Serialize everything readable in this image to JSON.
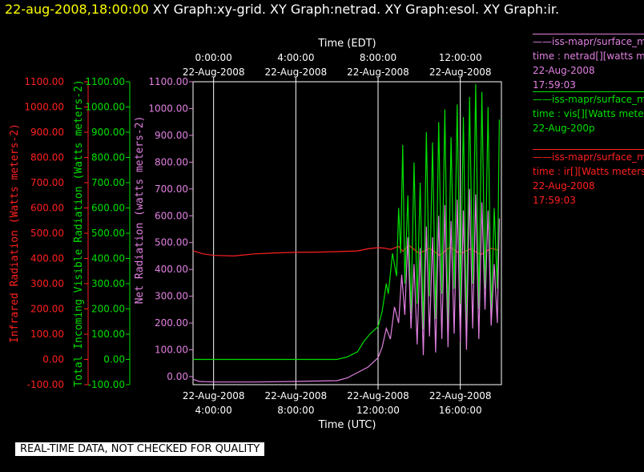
{
  "header": {
    "timestamp": "22-aug-2008,18:00:00",
    "titles": "XY Graph:xy-grid.  XY Graph:netrad.  XY Graph:esol.  XY Graph:ir."
  },
  "legend": [
    {
      "line1": "iss-mapr/surface_m",
      "line2": "time : netrad[][watts m",
      "line3": "22-Aug-2008",
      "line4": "17:59:03",
      "color": "#e080e0"
    },
    {
      "line1": "iss-mapr/surface_m",
      "line2": "time : vis[][Watts mete",
      "line3": "22-Aug-200p",
      "line4": "",
      "color": "#00e000"
    },
    {
      "line1": "iss-mapr/surface_m",
      "line2": "time : ir[][Watts meters",
      "line3": "22-Aug-2008",
      "line4": "17:59:03",
      "color": "#ff2020"
    }
  ],
  "footer": "REAL-TIME DATA, NOT CHECKED FOR QUALITY",
  "colors": {
    "ir": "#ff2020",
    "vis": "#00e000",
    "net": "#e080e0",
    "grid": "#ffffff"
  },
  "chart_data": {
    "type": "line",
    "xlabel_top": "Time (EDT)",
    "xlabel_bottom": "Time (UTC)",
    "x_ticks_top": [
      {
        "time": "0:00:00",
        "date": "22-Aug-2008",
        "utc_hour": 4
      },
      {
        "time": "4:00:00",
        "date": "22-Aug-2008",
        "utc_hour": 8
      },
      {
        "time": "8:00:00",
        "date": "22-Aug-2008",
        "utc_hour": 12
      },
      {
        "time": "12:00:00",
        "date": "22-Aug-2008",
        "utc_hour": 16
      }
    ],
    "x_ticks_bottom": [
      {
        "date": "22-Aug-2008",
        "time": "4:00:00",
        "utc_hour": 4
      },
      {
        "date": "22-Aug-2008",
        "time": "8:00:00",
        "utc_hour": 8
      },
      {
        "date": "22-Aug-2008",
        "time": "12:00:00",
        "utc_hour": 12
      },
      {
        "date": "22-Aug-2008",
        "time": "16:00:00",
        "utc_hour": 16
      }
    ],
    "xlim_utc_hours": [
      3.0,
      18.0
    ],
    "y_ticks": [
      "-100.00",
      "0.00",
      "100.00",
      "200.00",
      "300.00",
      "400.00",
      "500.00",
      "600.00",
      "700.00",
      "800.00",
      "900.00",
      "1000.00",
      "1100.00"
    ],
    "y_ticks_net": [
      "0.00",
      "100.00",
      "200.00",
      "300.00",
      "400.00",
      "500.00",
      "600.00",
      "700.00",
      "800.00",
      "900.00",
      "1000.00",
      "1100.00"
    ],
    "ylim": [
      -100,
      1100
    ],
    "ylim_net": [
      -30,
      1100
    ],
    "grid": true,
    "series": [
      {
        "name": "Infrared Radiation (Watts meters-2)",
        "key": "ir",
        "axis": "left",
        "x": [
          3.0,
          3.5,
          4.0,
          5.0,
          6.0,
          7.0,
          8.0,
          9.0,
          10.0,
          11.0,
          11.5,
          12.0,
          12.3,
          12.6,
          13.0,
          13.2,
          13.5,
          14.0,
          14.5,
          15.0,
          15.5,
          16.0,
          16.5,
          17.0,
          17.5,
          17.9
        ],
        "y": [
          430,
          418,
          412,
          410,
          418,
          422,
          424,
          425,
          427,
          430,
          438,
          443,
          441,
          436,
          448,
          428,
          452,
          420,
          440,
          412,
          445,
          418,
          438,
          415,
          440,
          432
        ]
      },
      {
        "name": "Total Incoming Visible Radiation (Watts meters-2)",
        "key": "vis",
        "axis": "left",
        "x": [
          3.0,
          4.0,
          6.0,
          8.0,
          10.0,
          10.5,
          11.0,
          11.3,
          11.6,
          12.0,
          12.2,
          12.4,
          12.5,
          12.7,
          12.9,
          13.0,
          13.1,
          13.2,
          13.3,
          13.45,
          13.6,
          13.75,
          13.9,
          14.05,
          14.2,
          14.35,
          14.5,
          14.65,
          14.8,
          14.95,
          15.1,
          15.25,
          15.4,
          15.55,
          15.7,
          15.85,
          16.0,
          16.15,
          16.3,
          16.45,
          16.6,
          16.75,
          16.9,
          17.05,
          17.2,
          17.35,
          17.5,
          17.65,
          17.8,
          17.9
        ],
        "y": [
          0,
          0,
          0,
          0,
          0,
          10,
          30,
          70,
          100,
          130,
          190,
          300,
          260,
          420,
          330,
          600,
          420,
          850,
          300,
          650,
          180,
          780,
          220,
          700,
          120,
          900,
          250,
          860,
          160,
          940,
          260,
          990,
          140,
          880,
          280,
          1010,
          220,
          960,
          130,
          1040,
          300,
          1090,
          200,
          1060,
          280,
          1000,
          170,
          600,
          280,
          950
        ]
      },
      {
        "name": "Net Radiation (watts meters-2)",
        "key": "net",
        "axis": "net",
        "x": [
          3.0,
          3.3,
          4.0,
          6.0,
          8.0,
          10.0,
          10.5,
          11.0,
          11.5,
          12.0,
          12.2,
          12.4,
          12.6,
          12.8,
          13.0,
          13.15,
          13.3,
          13.45,
          13.6,
          13.75,
          13.9,
          14.05,
          14.2,
          14.35,
          14.5,
          14.65,
          14.8,
          14.95,
          15.1,
          15.25,
          15.4,
          15.55,
          15.7,
          15.85,
          16.0,
          16.15,
          16.3,
          16.45,
          16.6,
          16.75,
          16.9,
          17.05,
          17.2,
          17.35,
          17.5,
          17.65,
          17.8,
          17.9
        ],
        "y": [
          -10,
          -18,
          -20,
          -20,
          -18,
          -15,
          -5,
          15,
          35,
          70,
          110,
          180,
          140,
          260,
          200,
          380,
          230,
          520,
          180,
          420,
          120,
          480,
          80,
          560,
          150,
          520,
          90,
          600,
          140,
          640,
          110,
          580,
          160,
          660,
          130,
          620,
          100,
          700,
          180,
          680,
          140,
          650,
          250,
          620,
          190,
          420,
          200,
          590
        ]
      }
    ]
  },
  "axes": {
    "ir_label": "Infrared Radiation (Watts meters-2)",
    "vis_label": "Total Incoming Visible Radiation (Watts meters-2)",
    "net_label": "Net Radiation (watts meters-2)"
  }
}
